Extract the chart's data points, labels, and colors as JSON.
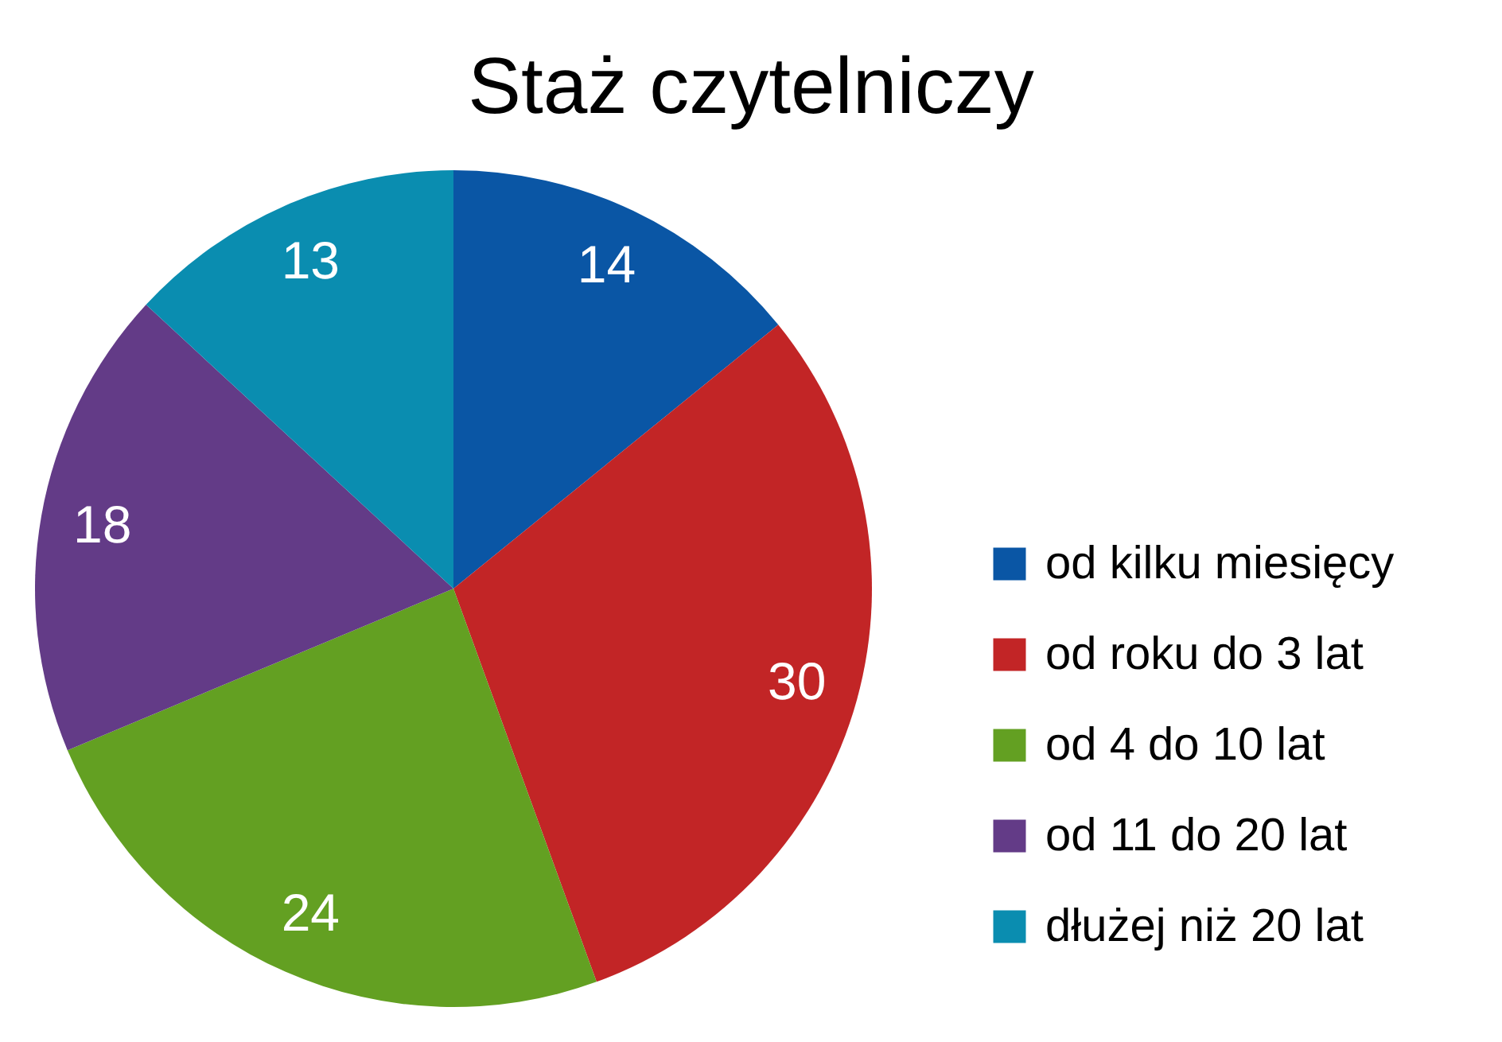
{
  "chart_data": {
    "type": "pie",
    "title": "Staż czytelniczy",
    "categories": [
      "od kilku miesięcy",
      "od roku do 3 lat",
      "od 4 do 10 lat",
      "od 11 do 20 lat",
      "dłużej niż 20 lat"
    ],
    "values": [
      14,
      30,
      24,
      18,
      13
    ],
    "colors": [
      "#0a56a5",
      "#c22526",
      "#63a022",
      "#633b87",
      "#0a8db0"
    ],
    "data_labels": true,
    "legend": "right"
  }
}
